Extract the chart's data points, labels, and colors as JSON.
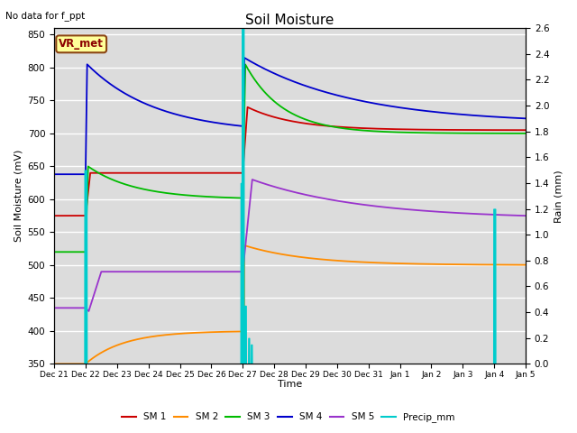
{
  "title": "Soil Moisture",
  "top_left_text": "No data for f_ppt",
  "xlabel": "Time",
  "ylabel_left": "Soil Moisture (mV)",
  "ylabel_right": "Rain (mm)",
  "ylim_left": [
    350,
    860
  ],
  "ylim_right": [
    0.0,
    2.6
  ],
  "bg_color": "#dcdcdc",
  "fig_color": "#ffffff",
  "grid_color": "#ffffff",
  "annotation_box": {
    "text": "VR_met",
    "facecolor": "#ffff99",
    "edgecolor": "#8B4513"
  },
  "legend_entries": [
    {
      "label": "SM 1",
      "color": "#cc0000"
    },
    {
      "label": "SM 2",
      "color": "#ff8c00"
    },
    {
      "label": "SM 3",
      "color": "#00bb00"
    },
    {
      "label": "SM 4",
      "color": "#0000cc"
    },
    {
      "label": "SM 5",
      "color": "#9933cc"
    },
    {
      "label": "Precip_mm",
      "color": "#00cccc"
    }
  ],
  "xticklabels": [
    "Dec 21",
    "Dec 22",
    "Dec 23",
    "Dec 24",
    "Dec 25",
    "Dec 26",
    "Dec 27",
    "Dec 28",
    "Dec 29",
    "Dec 30",
    "Dec 31",
    "Jan 1",
    "Jan 2",
    "Jan 3",
    "Jan 4",
    "Jan 5"
  ]
}
